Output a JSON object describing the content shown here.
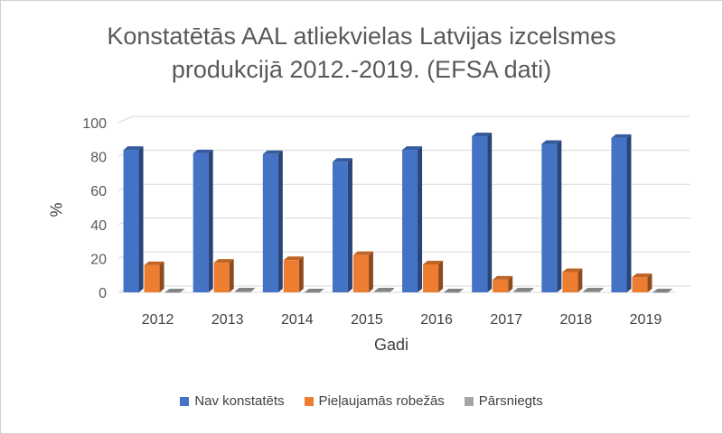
{
  "chart_data": {
    "type": "bar",
    "title": [
      "Konstatētās AAL atliekvielas Latvijas izcelsmes",
      "produkcijā 2012.-2019. (EFSA dati)"
    ],
    "xlabel": "Gadi",
    "ylabel": "%",
    "ylim": [
      0,
      100
    ],
    "yticks": [
      0,
      20,
      40,
      60,
      80,
      100
    ],
    "grid": true,
    "legend_position": "bottom",
    "categories": [
      "2012",
      "2013",
      "2014",
      "2015",
      "2016",
      "2017",
      "2018",
      "2019"
    ],
    "series": [
      {
        "name": "Nav konstatēts",
        "color": "#4472C4",
        "values": [
          84,
          82,
          81.5,
          77,
          84,
          92,
          87.5,
          91
        ]
      },
      {
        "name": "Pieļaujamās robežās",
        "color": "#ED7D31",
        "values": [
          16,
          17.5,
          19,
          22,
          16.5,
          7.5,
          12,
          9
        ]
      },
      {
        "name": "Pārsniegts",
        "color": "#A5A5A5",
        "values": [
          0,
          0.5,
          0,
          0.5,
          0,
          0.5,
          0.5,
          0
        ]
      }
    ]
  }
}
